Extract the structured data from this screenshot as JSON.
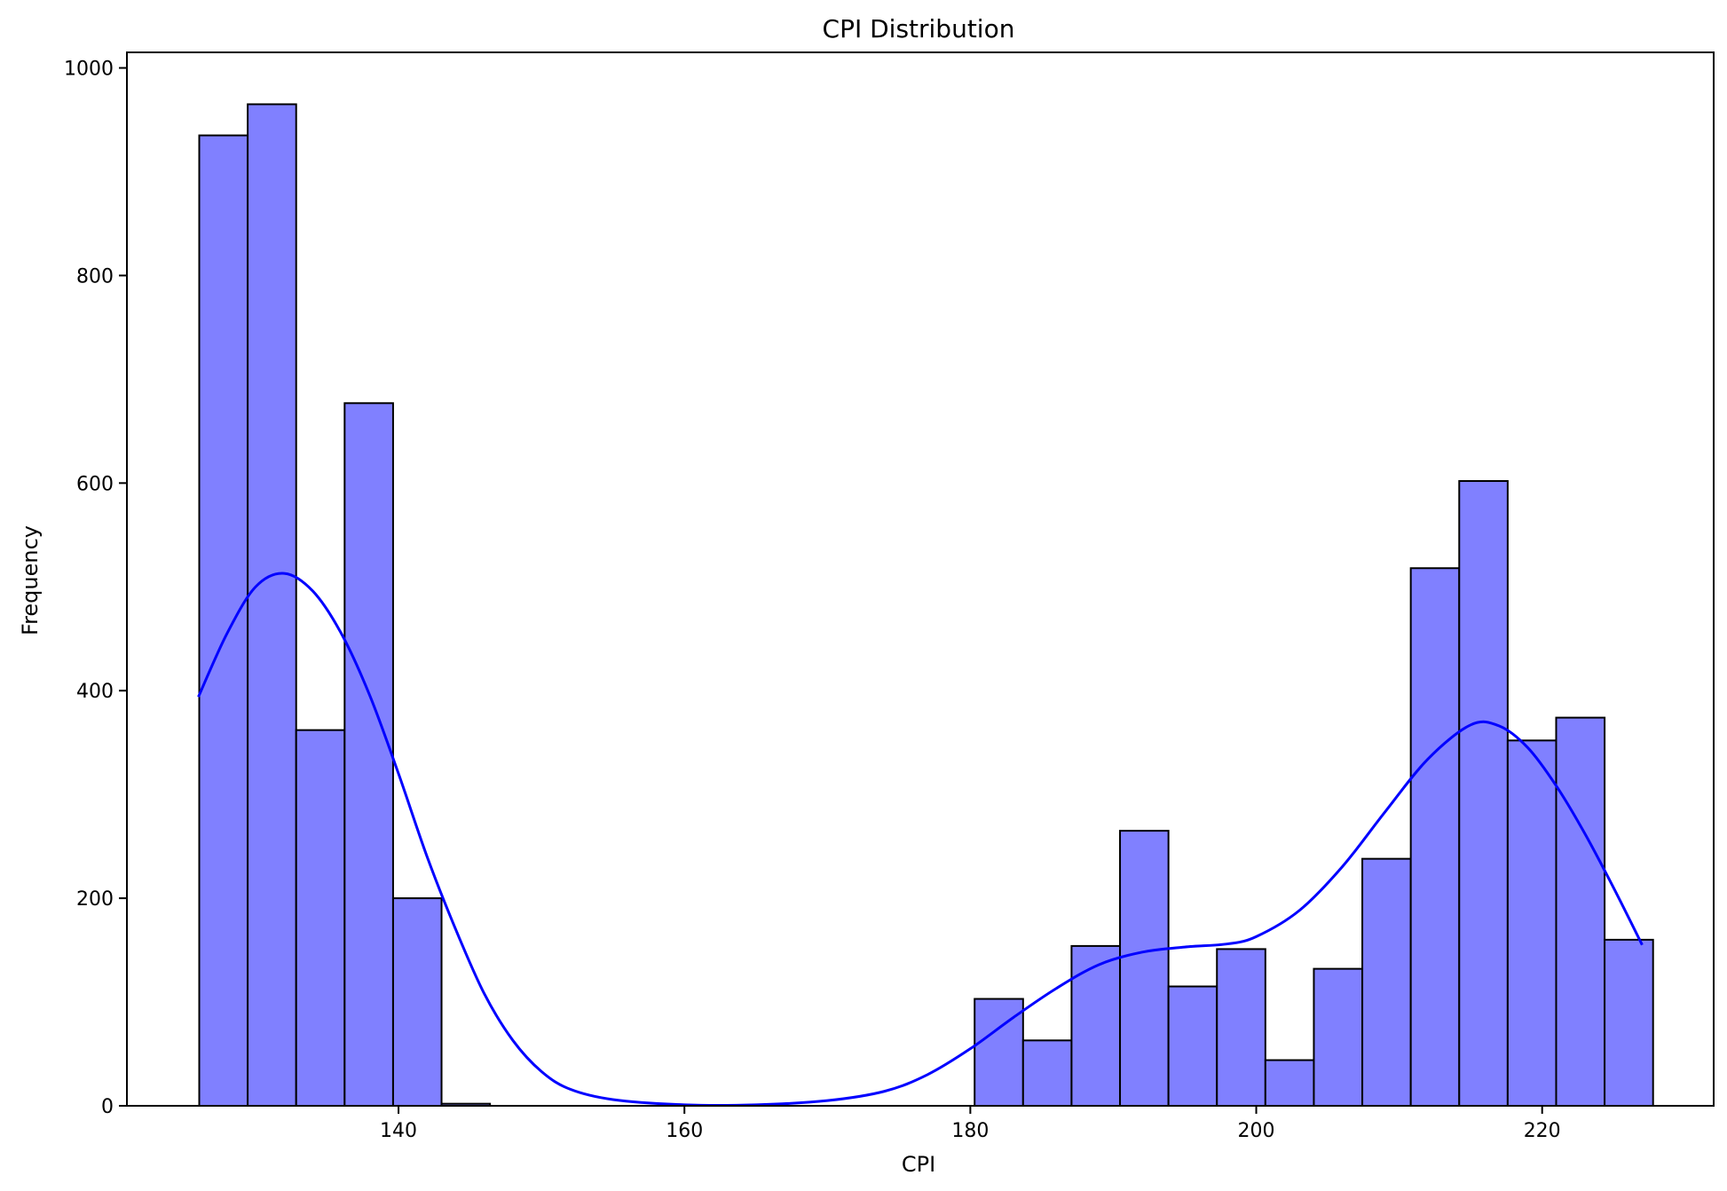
{
  "chart_data": {
    "type": "bar",
    "subtype": "histogram",
    "title": "CPI Distribution",
    "xlabel": "CPI",
    "ylabel": "Frequency",
    "xlim": [
      121.0,
      232.0
    ],
    "ylim": [
      0,
      1015
    ],
    "xticks": [
      140,
      160,
      180,
      200,
      220
    ],
    "yticks": [
      0,
      200,
      400,
      600,
      800,
      1000
    ],
    "bar_fill": "#8080ff",
    "bar_edge": "#000000",
    "kde_color": "#0000ff",
    "grid": false,
    "bins": [
      {
        "x0": 126.06,
        "x1": 129.45,
        "count": 935
      },
      {
        "x0": 129.45,
        "x1": 132.84,
        "count": 965
      },
      {
        "x0": 132.84,
        "x1": 136.23,
        "count": 362
      },
      {
        "x0": 136.23,
        "x1": 139.62,
        "count": 677
      },
      {
        "x0": 139.62,
        "x1": 143.01,
        "count": 200
      },
      {
        "x0": 143.01,
        "x1": 146.4,
        "count": 2
      },
      {
        "x0": 180.3,
        "x1": 183.69,
        "count": 103
      },
      {
        "x0": 183.69,
        "x1": 187.08,
        "count": 63
      },
      {
        "x0": 187.08,
        "x1": 190.47,
        "count": 154
      },
      {
        "x0": 190.47,
        "x1": 193.86,
        "count": 265
      },
      {
        "x0": 193.86,
        "x1": 197.25,
        "count": 115
      },
      {
        "x0": 197.25,
        "x1": 200.64,
        "count": 151
      },
      {
        "x0": 200.64,
        "x1": 204.03,
        "count": 44
      },
      {
        "x0": 204.03,
        "x1": 207.42,
        "count": 132
      },
      {
        "x0": 207.42,
        "x1": 210.81,
        "count": 238
      },
      {
        "x0": 210.81,
        "x1": 214.2,
        "count": 518
      },
      {
        "x0": 214.2,
        "x1": 217.59,
        "count": 602
      },
      {
        "x0": 217.59,
        "x1": 220.98,
        "count": 352
      },
      {
        "x0": 220.98,
        "x1": 224.37,
        "count": 374
      },
      {
        "x0": 224.37,
        "x1": 227.76,
        "count": 160
      }
    ],
    "kde_curve": [
      [
        126.0,
        394
      ],
      [
        128.0,
        455
      ],
      [
        130.0,
        500
      ],
      [
        132.0,
        513
      ],
      [
        134.0,
        496
      ],
      [
        136.0,
        455
      ],
      [
        138.0,
        395
      ],
      [
        140.0,
        320
      ],
      [
        142.0,
        240
      ],
      [
        144.0,
        170
      ],
      [
        146.0,
        108
      ],
      [
        148.0,
        63
      ],
      [
        150.0,
        33
      ],
      [
        152.0,
        16
      ],
      [
        155.0,
        6
      ],
      [
        160.0,
        1
      ],
      [
        165.0,
        1
      ],
      [
        170.0,
        5
      ],
      [
        174.0,
        14
      ],
      [
        177.0,
        30
      ],
      [
        180.0,
        55
      ],
      [
        183.0,
        85
      ],
      [
        186.0,
        113
      ],
      [
        189.0,
        136
      ],
      [
        192.0,
        148
      ],
      [
        195.0,
        153
      ],
      [
        198.0,
        156
      ],
      [
        200.0,
        163
      ],
      [
        203.0,
        188
      ],
      [
        206.0,
        230
      ],
      [
        209.0,
        283
      ],
      [
        212.0,
        334
      ],
      [
        215.0,
        367
      ],
      [
        217.0,
        366
      ],
      [
        219.0,
        345
      ],
      [
        221.0,
        308
      ],
      [
        223.0,
        262
      ],
      [
        225.0,
        210
      ],
      [
        227.0,
        155
      ]
    ]
  }
}
